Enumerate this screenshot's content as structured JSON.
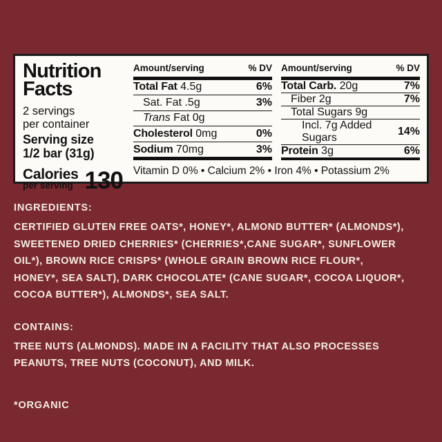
{
  "colors": {
    "background": "#7B2931",
    "label_background": "#FCFBF7",
    "label_text": "#111111",
    "panel_text": "#F3EDE2"
  },
  "label": {
    "title_line1": "Nutrition",
    "title_line2": "Facts",
    "servings_line1": "2 servings",
    "servings_line2": "per container",
    "serving_size_label": "Serving size",
    "serving_size_value": "1/2 bar (31g)",
    "calories_label": "Calories",
    "calories_sub": "per serving",
    "calories_value": "130",
    "col_header_amount": "Amount/serving",
    "col_header_dv": "% DV",
    "left_rows": [
      {
        "bold": "Total Fat",
        "rest": " 4.5g",
        "dv": "6%"
      },
      {
        "rest": "Sat. Fat .5g",
        "dv": "3%"
      },
      {
        "italic": "Trans",
        "rest": " Fat 0g",
        "dv": ""
      },
      {
        "bold": "Cholesterol",
        "rest": " 0mg",
        "dv": "0%"
      },
      {
        "bold": "Sodium",
        "rest": " 70mg",
        "dv": "3%"
      }
    ],
    "right_rows": [
      {
        "bold": "Total Carb.",
        "rest": " 20g",
        "dv": "7%"
      },
      {
        "rest": "Fiber 2g",
        "dv": "7%"
      },
      {
        "rest": "Total Sugars 9g",
        "dv": ""
      },
      {
        "rest": "Incl. 7g Added Sugars",
        "dv": "14%"
      },
      {
        "bold": "Protein",
        "rest": " 3g",
        "dv": "6%"
      }
    ],
    "vitamins_line": "Vitamin D 0% • Calcium 2% • Iron 4% • Potassium 2%"
  },
  "ingredients": {
    "heading": "INGREDIENTS:",
    "body": "CERTIFIED GLUTEN FREE OATS*, HONEY*, ALMOND BUTTER* (ALMONDS*),\nSWEETENED DRIED CHERRIES* (CHERRIES*,CANE SUGAR*, SUNFLOWER\nOIL*), BROWN RICE CRISPS* (WHOLE GRAIN BROWN RICE FLOUR*,\nHONEY*, SEA SALT), DARK CHOCOLATE* (CANE SUGAR*, COCOA LIQUOR*,\nCOCOA BUTTER*), ALMONDS*, SEA SALT."
  },
  "contains": {
    "heading": "CONTAINS:",
    "body": "TREE NUTS (ALMONDS). MADE IN A FACILITY THAT ALSO PROCESSES\nPEANUTS, TREE NUTS (COCONUT), AND MILK."
  },
  "organic_note": "*ORGANIC"
}
